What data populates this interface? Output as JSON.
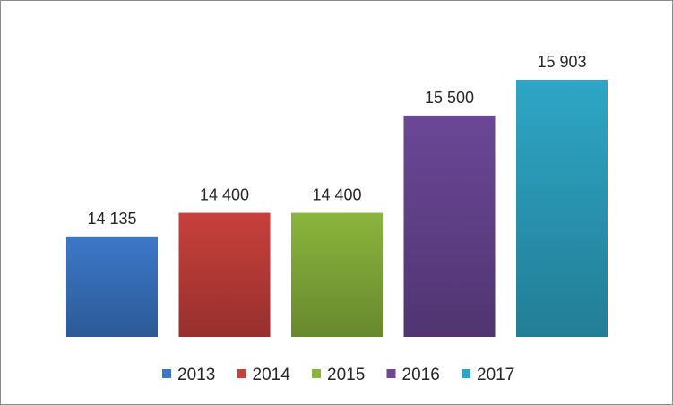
{
  "chart_data": {
    "type": "bar",
    "categories": [
      "2013",
      "2014",
      "2015",
      "2016",
      "2017"
    ],
    "values": [
      14135,
      14400,
      14400,
      15500,
      15903
    ],
    "value_labels": [
      "14 135",
      "14 400",
      "14 400",
      "15 500",
      "15 903"
    ],
    "series": [
      {
        "name": "2013",
        "value": 14135,
        "color": "#3c78c8"
      },
      {
        "name": "2014",
        "value": 14400,
        "color": "#c8403c"
      },
      {
        "name": "2015",
        "value": 14400,
        "color": "#8ab53d"
      },
      {
        "name": "2016",
        "value": 15500,
        "color": "#6b4796"
      },
      {
        "name": "2017",
        "value": 15903,
        "color": "#2ea6c6"
      }
    ],
    "title": "",
    "xlabel": "",
    "ylabel": "",
    "ylim": [
      13000,
      16500
    ],
    "grid": false,
    "legend_position": "bottom",
    "data_labels": true,
    "gradient": true
  }
}
